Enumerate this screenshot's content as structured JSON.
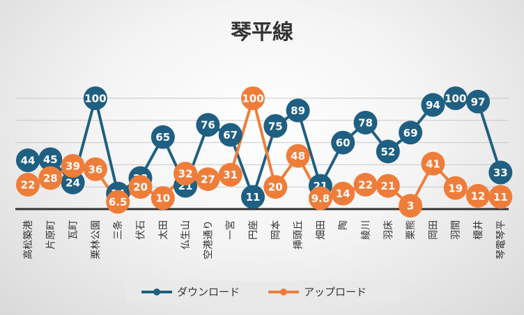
{
  "chart_data": {
    "type": "line",
    "title": "琴平線",
    "categories": [
      "高松築港",
      "片原町",
      "瓦町",
      "栗林公園",
      "三条",
      "伏石",
      "太田",
      "仏生山",
      "空港通り",
      "一宮",
      "円座",
      "岡本",
      "挿頭丘",
      "畑田",
      "陶",
      "綾川",
      "羽床",
      "栗熊",
      "岡田",
      "羽間",
      "榎井",
      "琴電琴平"
    ],
    "series": [
      {
        "name": "ダウンロード",
        "color": "#1f5f82",
        "values": [
          44,
          45,
          24,
          100,
          14,
          28,
          65,
          21,
          76,
          67,
          11,
          75,
          89,
          21,
          60,
          78,
          52,
          69,
          94,
          100,
          97,
          33
        ]
      },
      {
        "name": "アップロード",
        "color": "#ef7d3a",
        "values": [
          22,
          28,
          39,
          36,
          6.5,
          20,
          10,
          32,
          27,
          31,
          100,
          20,
          48,
          9.8,
          14,
          22,
          21,
          3,
          41,
          19,
          12,
          11
        ]
      }
    ],
    "ylim": [
      0,
      100
    ],
    "grid": true,
    "legend": "bottom"
  }
}
